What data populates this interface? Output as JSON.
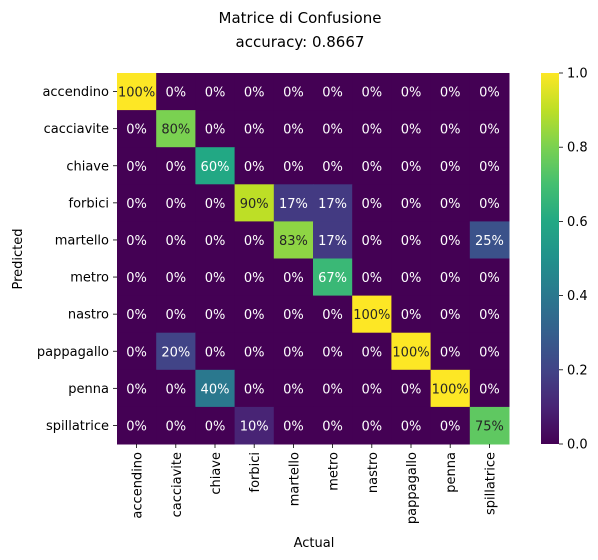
{
  "chart_data": {
    "type": "heatmap",
    "title": "Matrice di Confusione",
    "subtitle": "accuracy: 0.8667",
    "xlabel": "Actual",
    "ylabel": "Predicted",
    "colormap": "viridis",
    "x_categories": [
      "accendino",
      "cacciavite",
      "chiave",
      "forbici",
      "martello",
      "metro",
      "nastro",
      "pappagallo",
      "penna",
      "spillatrice"
    ],
    "y_categories": [
      "accendino",
      "cacciavite",
      "chiave",
      "forbici",
      "martello",
      "metro",
      "nastro",
      "pappagallo",
      "penna",
      "spillatrice"
    ],
    "values": [
      [
        1.0,
        0.0,
        0.0,
        0.0,
        0.0,
        0.0,
        0.0,
        0.0,
        0.0,
        0.0
      ],
      [
        0.0,
        0.8,
        0.0,
        0.0,
        0.0,
        0.0,
        0.0,
        0.0,
        0.0,
        0.0
      ],
      [
        0.0,
        0.0,
        0.6,
        0.0,
        0.0,
        0.0,
        0.0,
        0.0,
        0.0,
        0.0
      ],
      [
        0.0,
        0.0,
        0.0,
        0.9,
        0.17,
        0.17,
        0.0,
        0.0,
        0.0,
        0.0
      ],
      [
        0.0,
        0.0,
        0.0,
        0.0,
        0.83,
        0.17,
        0.0,
        0.0,
        0.0,
        0.25
      ],
      [
        0.0,
        0.0,
        0.0,
        0.0,
        0.0,
        0.67,
        0.0,
        0.0,
        0.0,
        0.0
      ],
      [
        0.0,
        0.0,
        0.0,
        0.0,
        0.0,
        0.0,
        1.0,
        0.0,
        0.0,
        0.0
      ],
      [
        0.0,
        0.2,
        0.0,
        0.0,
        0.0,
        0.0,
        0.0,
        1.0,
        0.0,
        0.0
      ],
      [
        0.0,
        0.0,
        0.4,
        0.0,
        0.0,
        0.0,
        0.0,
        0.0,
        1.0,
        0.0
      ],
      [
        0.0,
        0.0,
        0.0,
        0.1,
        0.0,
        0.0,
        0.0,
        0.0,
        0.0,
        0.75
      ]
    ],
    "cell_labels": [
      [
        "100%",
        "0%",
        "0%",
        "0%",
        "0%",
        "0%",
        "0%",
        "0%",
        "0%",
        "0%"
      ],
      [
        "0%",
        "80%",
        "0%",
        "0%",
        "0%",
        "0%",
        "0%",
        "0%",
        "0%",
        "0%"
      ],
      [
        "0%",
        "0%",
        "60%",
        "0%",
        "0%",
        "0%",
        "0%",
        "0%",
        "0%",
        "0%"
      ],
      [
        "0%",
        "0%",
        "0%",
        "90%",
        "17%",
        "17%",
        "0%",
        "0%",
        "0%",
        "0%"
      ],
      [
        "0%",
        "0%",
        "0%",
        "0%",
        "83%",
        "17%",
        "0%",
        "0%",
        "0%",
        "25%"
      ],
      [
        "0%",
        "0%",
        "0%",
        "0%",
        "0%",
        "67%",
        "0%",
        "0%",
        "0%",
        "0%"
      ],
      [
        "0%",
        "0%",
        "0%",
        "0%",
        "0%",
        "0%",
        "100%",
        "0%",
        "0%",
        "0%"
      ],
      [
        "0%",
        "20%",
        "0%",
        "0%",
        "0%",
        "0%",
        "0%",
        "100%",
        "0%",
        "0%"
      ],
      [
        "0%",
        "0%",
        "40%",
        "0%",
        "0%",
        "0%",
        "0%",
        "0%",
        "100%",
        "0%"
      ],
      [
        "0%",
        "0%",
        "0%",
        "10%",
        "0%",
        "0%",
        "0%",
        "0%",
        "0%",
        "75%"
      ]
    ],
    "colorbar": {
      "range": [
        0.0,
        1.0
      ],
      "ticks": [
        0.0,
        0.2,
        0.4,
        0.6,
        0.8,
        1.0
      ],
      "tick_labels": [
        "0.0",
        "0.2",
        "0.4",
        "0.6",
        "0.8",
        "1.0"
      ]
    }
  }
}
